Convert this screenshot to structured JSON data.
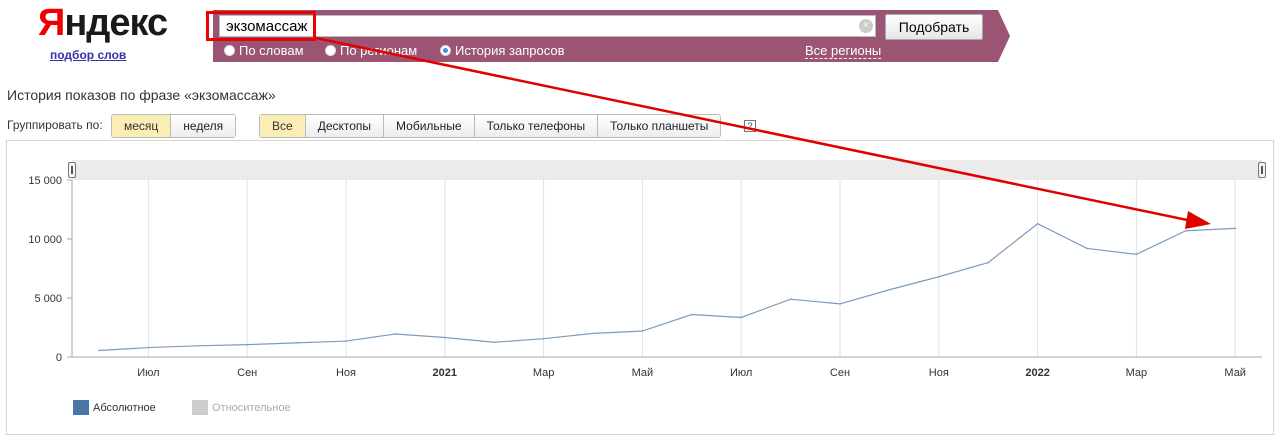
{
  "header": {
    "logo_first": "Я",
    "logo_rest": "ндекс",
    "sublogo": "подбор слов"
  },
  "search": {
    "query": "экзомассаж",
    "clear": "×",
    "button": "Подобрать",
    "modes": [
      {
        "label": "По словам",
        "checked": false
      },
      {
        "label": "По регионам",
        "checked": false
      },
      {
        "label": "История запросов",
        "checked": true
      }
    ],
    "regions_link": "Все регионы"
  },
  "page": {
    "title": "История показов по фразе «экзомассаж»",
    "group_label": "Группировать по:",
    "group_options": [
      {
        "label": "месяц",
        "active": true
      },
      {
        "label": "неделя",
        "active": false
      }
    ],
    "device_options": [
      {
        "label": "Все",
        "active": true
      },
      {
        "label": "Десктопы",
        "active": false
      },
      {
        "label": "Мобильные",
        "active": false
      },
      {
        "label": "Только телефоны",
        "active": false
      },
      {
        "label": "Только планшеты",
        "active": false
      }
    ],
    "help": "?"
  },
  "chart_data": {
    "type": "line",
    "x": [
      "2020-06",
      "2020-07",
      "2020-08",
      "2020-09",
      "2020-10",
      "2020-11",
      "2020-12",
      "2021-01",
      "2021-02",
      "2021-03",
      "2021-04",
      "2021-05",
      "2021-06",
      "2021-07",
      "2021-08",
      "2021-09",
      "2021-10",
      "2021-11",
      "2021-12",
      "2022-01",
      "2022-02",
      "2022-03",
      "2022-04",
      "2022-05"
    ],
    "series": [
      {
        "name": "Абсолютное",
        "values": [
          550,
          800,
          950,
          1050,
          1200,
          1350,
          1950,
          1650,
          1250,
          1550,
          2000,
          2200,
          3600,
          3350,
          4900,
          4500,
          5700,
          6800,
          8000,
          11300,
          9200,
          8700,
          10700,
          10900
        ]
      }
    ],
    "tick_labels": [
      "Июл",
      "Сен",
      "Ноя",
      "2021",
      "Мар",
      "Май",
      "Июл",
      "Сен",
      "Ноя",
      "2022",
      "Мар",
      "Май"
    ],
    "tick_bold": [
      false,
      false,
      false,
      true,
      false,
      false,
      false,
      false,
      false,
      true,
      false,
      false
    ],
    "tick_months": [
      "2020-07",
      "2020-09",
      "2020-11",
      "2021-01",
      "2021-03",
      "2021-05",
      "2021-07",
      "2021-09",
      "2021-11",
      "2022-01",
      "2022-03",
      "2022-05"
    ],
    "y_ticks": [
      "0",
      "5 000",
      "10 000",
      "15 000"
    ],
    "y_tick_values": [
      0,
      5000,
      10000,
      15000
    ],
    "ylim": [
      0,
      15000
    ],
    "grid": "vertical",
    "legend": [
      {
        "label": "Абсолютное",
        "color": "#4b76a8",
        "enabled": true
      },
      {
        "label": "Относительное",
        "color": "#cccccc",
        "enabled": false
      }
    ],
    "line_color": "#7f9bbb",
    "annotation_color": "#e00000"
  }
}
